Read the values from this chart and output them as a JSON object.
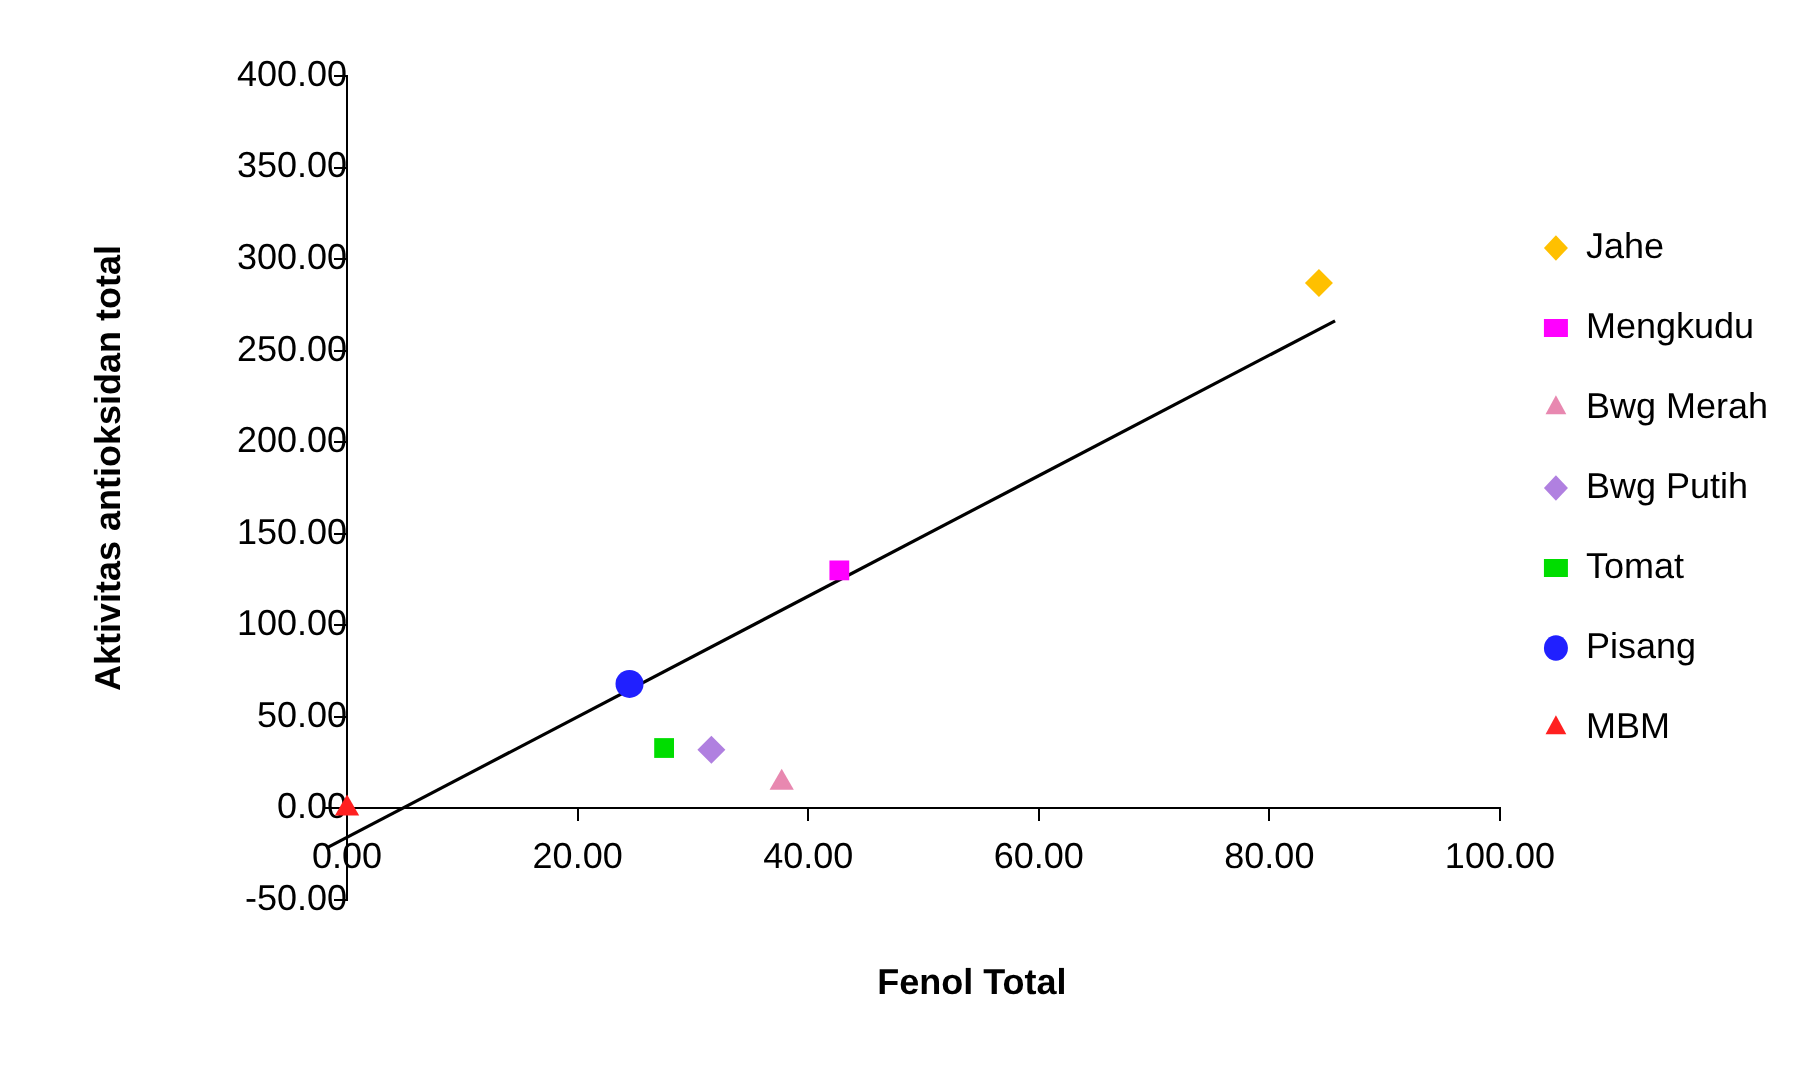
{
  "chart_data": {
    "type": "scatter",
    "xlabel": "Fenol Total",
    "ylabel": "Aktivitas antioksidan total",
    "xlim": [
      -2,
      100
    ],
    "ylim": [
      -50,
      400
    ],
    "xticks": [
      {
        "value": 0,
        "label": "0.00"
      },
      {
        "value": 20,
        "label": "20.00"
      },
      {
        "value": 40,
        "label": "40.00"
      },
      {
        "value": 60,
        "label": "60.00"
      },
      {
        "value": 80,
        "label": "80.00"
      },
      {
        "value": 100,
        "label": "100.00"
      }
    ],
    "yticks": [
      {
        "value": -50,
        "label": "-50.00"
      },
      {
        "value": 0,
        "label": "0.00"
      },
      {
        "value": 50,
        "label": "50.00"
      },
      {
        "value": 100,
        "label": "100.00"
      },
      {
        "value": 150,
        "label": "150.00"
      },
      {
        "value": 200,
        "label": "200.00"
      },
      {
        "value": 250,
        "label": "250.00"
      },
      {
        "value": 300,
        "label": "300.00"
      },
      {
        "value": 350,
        "label": "350.00"
      },
      {
        "value": 400,
        "label": "400.00"
      }
    ],
    "grid": false,
    "legend": "right",
    "series": [
      {
        "name": "Jahe",
        "color": "#ffc000",
        "marker": "diamond",
        "x": [
          84.3
        ],
        "values": [
          287
        ]
      },
      {
        "name": "Mengkudu",
        "color": "#ff00ff",
        "marker": "square",
        "x": [
          42.7
        ],
        "values": [
          130
        ]
      },
      {
        "name": "Bwg Merah",
        "color": "#e888b0",
        "marker": "triangle",
        "x": [
          37.7
        ],
        "values": [
          14
        ]
      },
      {
        "name": "Bwg Putih",
        "color": "#b080e0",
        "marker": "diamond",
        "x": [
          31.6
        ],
        "values": [
          32
        ]
      },
      {
        "name": "Tomat",
        "color": "#00dd00",
        "marker": "square",
        "x": [
          27.5
        ],
        "values": [
          33
        ]
      },
      {
        "name": "Pisang",
        "color": "#2020ff",
        "marker": "circle",
        "x": [
          24.5
        ],
        "values": [
          68
        ]
      },
      {
        "name": "MBM",
        "color": "#ff2020",
        "marker": "triangle",
        "x": [
          0
        ],
        "values": [
          0
        ]
      },
      {
        "type": "line",
        "color": "#000000",
        "marker": "none",
        "x": [
          -1.8,
          85.7
        ],
        "values": [
          -21.7,
          266.3
        ]
      }
    ]
  }
}
